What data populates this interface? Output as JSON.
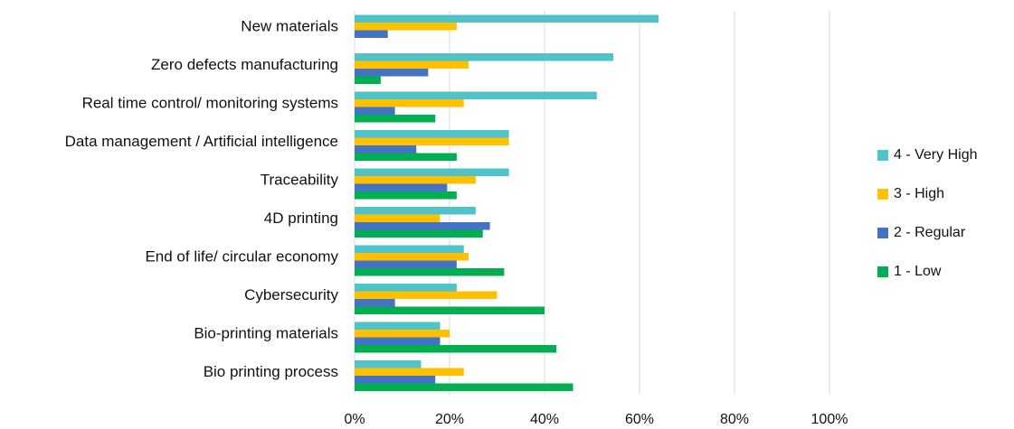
{
  "chart_data": {
    "type": "bar",
    "orientation": "horizontal",
    "title": "",
    "xlabel": "",
    "ylabel": "",
    "xlim": [
      0,
      100
    ],
    "x_ticks": [
      "0%",
      "20%",
      "40%",
      "60%",
      "80%",
      "100%"
    ],
    "grid": true,
    "legend_position": "right",
    "categories": [
      "New materials",
      "Zero defects manufacturing",
      "Real time control/ monitoring systems",
      "Data management / Artificial intelligence",
      "Traceability",
      "4D printing",
      "End of life/ circular economy",
      "Cybersecurity",
      "Bio-printing materials",
      "Bio printing process"
    ],
    "series": [
      {
        "name": "4 - Very High",
        "color": "#4fc3c8",
        "values": [
          64,
          54.5,
          51,
          32.5,
          32.5,
          25.5,
          23,
          21.5,
          18,
          14
        ]
      },
      {
        "name": "3 - High",
        "color": "#ffc000",
        "values": [
          21.5,
          24,
          23,
          32.5,
          25.5,
          18,
          24,
          30,
          20,
          23
        ]
      },
      {
        "name": "2 - Regular",
        "color": "#4472c4",
        "values": [
          7,
          15.5,
          8.5,
          13,
          19.5,
          28.5,
          21.5,
          8.5,
          18,
          17
        ]
      },
      {
        "name": "1 - Low",
        "color": "#00b050",
        "values": [
          0,
          5.5,
          17,
          21.5,
          21.5,
          27,
          31.5,
          40,
          42.5,
          46
        ]
      }
    ]
  }
}
